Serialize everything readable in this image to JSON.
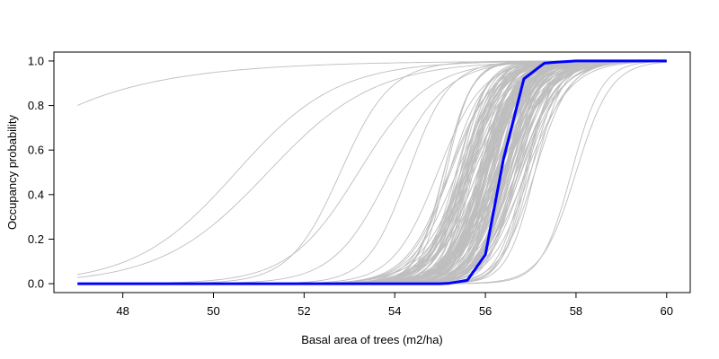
{
  "chart_data": {
    "type": "line",
    "title": "",
    "xlabel": "Basal area of trees (m2/ha)",
    "ylabel": "Occupancy probability",
    "xlim": [
      47,
      60
    ],
    "ylim": [
      0,
      1
    ],
    "x_ticks": [
      "48",
      "50",
      "52",
      "54",
      "56",
      "58",
      "60"
    ],
    "y_ticks": [
      "0.0",
      "0.2",
      "0.4",
      "0.6",
      "0.8",
      "1.0"
    ],
    "grid": false,
    "legend": "none",
    "x_domain": [
      47,
      60
    ],
    "highlight_series": {
      "color": "#0000ff",
      "points": [
        [
          47,
          0.0
        ],
        [
          48,
          0.0
        ],
        [
          49,
          0.0
        ],
        [
          50,
          0.0
        ],
        [
          51,
          0.0
        ],
        [
          52,
          0.0
        ],
        [
          53,
          0.0
        ],
        [
          54,
          0.0
        ],
        [
          55,
          0.0
        ],
        [
          55.2,
          0.002
        ],
        [
          55.6,
          0.015
        ],
        [
          56.0,
          0.13
        ],
        [
          56.4,
          0.56
        ],
        [
          56.85,
          0.92
        ],
        [
          57.3,
          0.99
        ],
        [
          57.6,
          0.995
        ],
        [
          58.0,
          1.0
        ],
        [
          59.0,
          1.0
        ],
        [
          60,
          1.0
        ]
      ]
    },
    "background_series": {
      "color": "#bebebe",
      "count": 150,
      "description_free_params": true,
      "curves": [
        {
          "midpoint": 51.0,
          "slope": 1.5,
          "start": 0.8,
          "type": "saturating"
        },
        {
          "midpoint": 50.5,
          "slope": 0.9
        },
        {
          "midpoint": 51.2,
          "slope": 0.85
        },
        {
          "midpoint": 52.8,
          "slope": 1.8
        },
        {
          "midpoint": 53.2,
          "slope": 1.3
        },
        {
          "midpoint": 53.9,
          "slope": 1.6
        },
        {
          "midpoint": 54.3,
          "slope": 2.2
        },
        {
          "midpoint": 57.9,
          "slope": 3.0
        },
        {
          "midpoint": 58.0,
          "slope": 2.6
        }
      ],
      "bulk_midpoint_range": [
        54.6,
        57.6
      ],
      "bulk_slope_range": [
        1.8,
        3.6
      ]
    }
  }
}
